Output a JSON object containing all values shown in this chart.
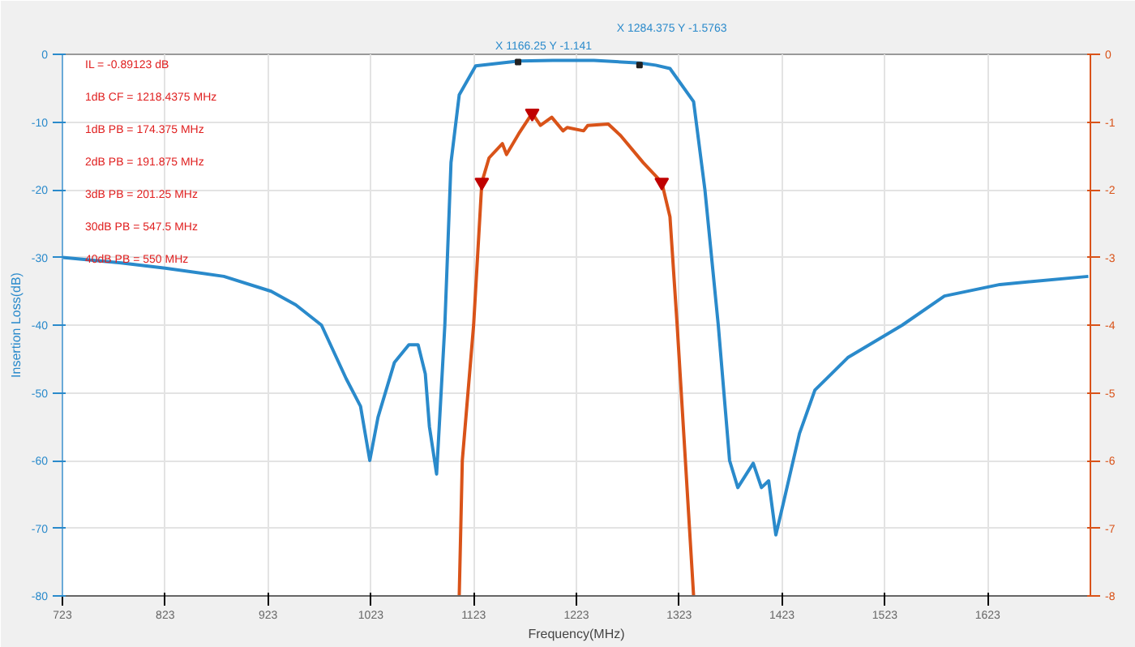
{
  "chart_data": {
    "type": "line",
    "xlabel": "Frequency(MHz)",
    "ylabel": "Insertion Loss(dB)",
    "xlim": [
      723,
      1723
    ],
    "xticks": [
      723,
      823,
      923,
      1023,
      1123,
      1223,
      1323,
      1423,
      1523,
      1623
    ],
    "ylim": [
      -80,
      0
    ],
    "yticks": [
      0,
      -10,
      -20,
      -30,
      -40,
      -50,
      -60,
      -70,
      -80
    ],
    "y2lim": [
      -8,
      0
    ],
    "y2ticks": [
      0,
      -1,
      -2,
      -3,
      -4,
      -5,
      -6,
      -7,
      -8
    ],
    "grid": true,
    "series": [
      {
        "color": "#2a8acb",
        "x": [
          723,
          780,
          823,
          880,
          926,
          950,
          975,
          999,
          1013,
          1022,
          1030,
          1046,
          1060,
          1069,
          1076,
          1080,
          1087,
          1095,
          1101,
          1109,
          1125,
          1167,
          1200,
          1240,
          1285,
          1300,
          1314,
          1337,
          1348,
          1361,
          1372,
          1380,
          1395,
          1403,
          1410,
          1417,
          1424,
          1440,
          1455,
          1487,
          1540,
          1581,
          1635,
          1721
        ],
        "values": [
          -30,
          -30.8,
          -31.6,
          -32.8,
          -35,
          -37,
          -40,
          -47.9,
          -52,
          -60,
          -53.6,
          -45.5,
          -42.9,
          -42.9,
          -47.2,
          -55,
          -62,
          -40,
          -16,
          -6,
          -1.7,
          -1.0,
          -0.9,
          -0.9,
          -1.3,
          -1.6,
          -2.1,
          -7,
          -20,
          -40,
          -60,
          -64,
          -60.4,
          -64,
          -63,
          -71,
          -66.5,
          -56,
          -49.6,
          -44.8,
          -40,
          -35.7,
          -34,
          -32.8
        ]
      },
      {
        "color": "#d95319",
        "axis": "y2",
        "x": [
          1109,
          1112,
          1123,
          1131,
          1138,
          1151,
          1155,
          1167,
          1180,
          1188,
          1199,
          1210,
          1214,
          1230,
          1234,
          1254,
          1266,
          1288,
          1306,
          1314,
          1321,
          1337
        ],
        "values": [
          -8,
          -6,
          -4,
          -1.89,
          -1.53,
          -1.32,
          -1.48,
          -1.17,
          -0.87,
          -1.05,
          -0.93,
          -1.13,
          -1.08,
          -1.13,
          -1.05,
          -1.03,
          -1.2,
          -1.6,
          -1.89,
          -2.4,
          -4,
          -8
        ]
      },
      {
        "type": "scatter",
        "color": "#c00000",
        "axis": "y2",
        "marker": "triangle",
        "x": [
          1131,
          1180,
          1306
        ],
        "values": [
          -1.89,
          -0.87,
          -1.89
        ]
      }
    ],
    "annotations": [
      "IL = -0.89123 dB",
      "1dB CF = 1218.4375 MHz",
      "1dB PB = 174.375 MHz",
      "2dB PB = 191.875 MHz",
      "3dB PB = 201.25 MHz",
      "30dB PB = 547.5 MHz",
      "40dB PB = 550 MHz",
      {
        "text": "X 1166.25 Y -1.141",
        "x": 1166.25,
        "y": -1.141
      },
      {
        "text": "X 1284.375 Y -1.5763",
        "x": 1284.375,
        "y": -1.5763
      }
    ]
  }
}
